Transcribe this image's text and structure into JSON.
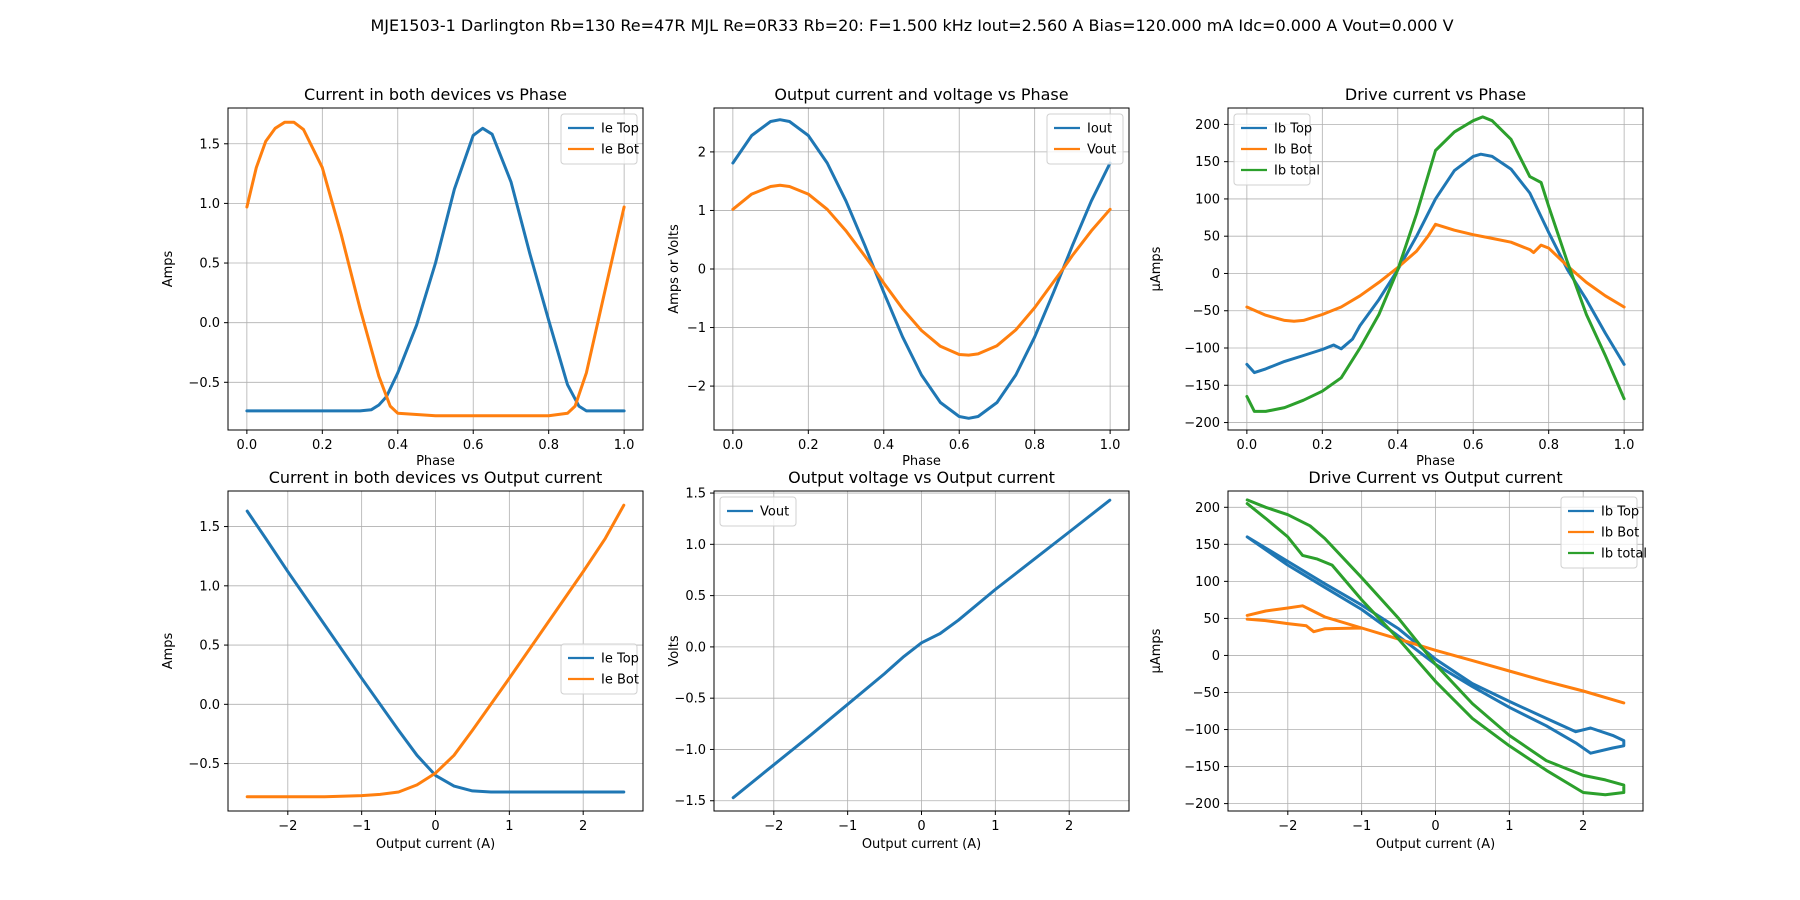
{
  "suptitle": "MJE1503-1 Darlington Rb=130 Re=47R MJL Re=0R33 Rb=20: F=1.500 kHz Iout=2.560 A Bias=120.000 mA Idc=0.000 A Vout=0.000 V",
  "colors": {
    "blue": "#1f77b4",
    "orange": "#ff7f0e",
    "green": "#2ca02c",
    "grid": "#b0b0b0"
  },
  "chart_data": [
    {
      "type": "line",
      "title": "Current in both devices vs Phase",
      "xlabel": "Phase",
      "ylabel": "Amps",
      "xlim": [
        -0.05,
        1.05
      ],
      "ylim": [
        -0.9,
        1.8
      ],
      "xticks": [
        0,
        0.2,
        0.4,
        0.6,
        0.8,
        1
      ],
      "xticklabels": [
        "0.0",
        "0.2",
        "0.4",
        "0.6",
        "0.8",
        "1.0"
      ],
      "yticks": [
        -0.5,
        0,
        0.5,
        1,
        1.5
      ],
      "yticklabels": [
        "−0.5",
        "0.0",
        "0.5",
        "1.0",
        "1.5"
      ],
      "grid": true,
      "legend": "top-right",
      "series": [
        {
          "name": "Ie Top",
          "color": "blue",
          "x": [
            0,
            0.05,
            0.1,
            0.15,
            0.2,
            0.25,
            0.3,
            0.33,
            0.35,
            0.37,
            0.4,
            0.45,
            0.5,
            0.55,
            0.6,
            0.625,
            0.65,
            0.7,
            0.75,
            0.8,
            0.85,
            0.88,
            0.9,
            0.95,
            1
          ],
          "y": [
            -0.74,
            -0.74,
            -0.74,
            -0.74,
            -0.74,
            -0.74,
            -0.74,
            -0.73,
            -0.69,
            -0.62,
            -0.42,
            -0.02,
            0.5,
            1.12,
            1.57,
            1.63,
            1.58,
            1.18,
            0.58,
            0.02,
            -0.52,
            -0.7,
            -0.74,
            -0.74,
            -0.74
          ]
        },
        {
          "name": "Ie Bot",
          "color": "orange",
          "x": [
            0,
            0.025,
            0.05,
            0.075,
            0.1,
            0.125,
            0.15,
            0.2,
            0.25,
            0.3,
            0.35,
            0.38,
            0.4,
            0.45,
            0.5,
            0.55,
            0.6,
            0.65,
            0.7,
            0.75,
            0.8,
            0.85,
            0.87,
            0.9,
            0.95,
            1
          ],
          "y": [
            0.97,
            1.3,
            1.52,
            1.63,
            1.68,
            1.68,
            1.62,
            1.3,
            0.74,
            0.12,
            -0.45,
            -0.7,
            -0.76,
            -0.77,
            -0.78,
            -0.78,
            -0.78,
            -0.78,
            -0.78,
            -0.78,
            -0.78,
            -0.76,
            -0.7,
            -0.42,
            0.28,
            0.97
          ]
        }
      ]
    },
    {
      "type": "line",
      "title": "Output current and voltage vs Phase",
      "xlabel": "Phase",
      "ylabel": "Amps or Volts",
      "xlim": [
        -0.05,
        1.05
      ],
      "ylim": [
        -2.75,
        2.75
      ],
      "xticks": [
        0,
        0.2,
        0.4,
        0.6,
        0.8,
        1
      ],
      "xticklabels": [
        "0.0",
        "0.2",
        "0.4",
        "0.6",
        "0.8",
        "1.0"
      ],
      "yticks": [
        -2,
        -1,
        0,
        1,
        2
      ],
      "yticklabels": [
        "−2",
        "−1",
        "0",
        "1",
        "2"
      ],
      "grid": true,
      "legend": "top-right",
      "series": [
        {
          "name": "Iout",
          "color": "blue",
          "x": [
            0,
            0.05,
            0.1,
            0.125,
            0.15,
            0.2,
            0.25,
            0.3,
            0.35,
            0.375,
            0.4,
            0.45,
            0.5,
            0.55,
            0.6,
            0.625,
            0.65,
            0.7,
            0.75,
            0.8,
            0.85,
            0.875,
            0.9,
            0.95,
            1
          ],
          "y": [
            1.81,
            2.28,
            2.52,
            2.55,
            2.52,
            2.28,
            1.81,
            1.16,
            0.4,
            0,
            -0.4,
            -1.16,
            -1.81,
            -2.28,
            -2.52,
            -2.55,
            -2.52,
            -2.28,
            -1.81,
            -1.16,
            -0.4,
            0,
            0.4,
            1.16,
            1.81
          ]
        },
        {
          "name": "Vout",
          "color": "orange",
          "x": [
            0,
            0.05,
            0.1,
            0.125,
            0.15,
            0.2,
            0.25,
            0.3,
            0.35,
            0.375,
            0.4,
            0.45,
            0.5,
            0.55,
            0.6,
            0.625,
            0.65,
            0.7,
            0.75,
            0.8,
            0.85,
            0.875,
            0.9,
            0.95,
            1
          ],
          "y": [
            1.02,
            1.28,
            1.41,
            1.43,
            1.41,
            1.28,
            1.02,
            0.65,
            0.22,
            0,
            -0.24,
            -0.68,
            -1.05,
            -1.32,
            -1.46,
            -1.47,
            -1.45,
            -1.31,
            -1.04,
            -0.66,
            -0.22,
            0,
            0.23,
            0.65,
            1.02
          ]
        }
      ]
    },
    {
      "type": "line",
      "title": "Drive current vs Phase",
      "xlabel": "Phase",
      "ylabel": "µAmps",
      "xlim": [
        -0.05,
        1.05
      ],
      "ylim": [
        -210,
        222
      ],
      "xticks": [
        0,
        0.2,
        0.4,
        0.6,
        0.8,
        1
      ],
      "xticklabels": [
        "0.0",
        "0.2",
        "0.4",
        "0.6",
        "0.8",
        "1.0"
      ],
      "yticks": [
        -200,
        -150,
        -100,
        -50,
        0,
        50,
        100,
        150,
        200
      ],
      "yticklabels": [
        "−200",
        "−150",
        "−100",
        "−50",
        "0",
        "50",
        "100",
        "150",
        "200"
      ],
      "grid": true,
      "legend": "top-left",
      "series": [
        {
          "name": "Ib Top",
          "color": "blue",
          "x": [
            0,
            0.02,
            0.05,
            0.1,
            0.15,
            0.2,
            0.23,
            0.25,
            0.28,
            0.3,
            0.35,
            0.4,
            0.45,
            0.5,
            0.55,
            0.6,
            0.62,
            0.65,
            0.7,
            0.75,
            0.8,
            0.85,
            0.9,
            0.95,
            1
          ],
          "y": [
            -122,
            -133,
            -128,
            -118,
            -110,
            -102,
            -96,
            -101,
            -88,
            -70,
            -35,
            5,
            50,
            100,
            138,
            157,
            160,
            157,
            140,
            108,
            55,
            5,
            -35,
            -80,
            -122
          ]
        },
        {
          "name": "Ib Bot",
          "color": "orange",
          "x": [
            0,
            0.05,
            0.1,
            0.125,
            0.15,
            0.2,
            0.25,
            0.3,
            0.35,
            0.4,
            0.45,
            0.48,
            0.5,
            0.55,
            0.6,
            0.65,
            0.7,
            0.75,
            0.76,
            0.78,
            0.8,
            0.85,
            0.9,
            0.95,
            1
          ],
          "y": [
            -45,
            -56,
            -63,
            -64,
            -63,
            -55,
            -45,
            -30,
            -12,
            8,
            30,
            50,
            66,
            58,
            52,
            47,
            42,
            32,
            28,
            38,
            34,
            10,
            -12,
            -30,
            -45
          ]
        },
        {
          "name": "Ib total",
          "color": "green",
          "x": [
            0,
            0.02,
            0.05,
            0.1,
            0.15,
            0.2,
            0.25,
            0.3,
            0.35,
            0.4,
            0.45,
            0.5,
            0.55,
            0.6,
            0.625,
            0.65,
            0.7,
            0.75,
            0.78,
            0.8,
            0.85,
            0.9,
            0.95,
            1
          ],
          "y": [
            -165,
            -185,
            -185,
            -180,
            -170,
            -158,
            -140,
            -100,
            -55,
            5,
            80,
            165,
            190,
            205,
            210,
            205,
            180,
            130,
            122,
            90,
            15,
            -55,
            -110,
            -168
          ]
        }
      ]
    },
    {
      "type": "line",
      "title": "Current in both devices vs Output current",
      "xlabel": "Output current (A)",
      "ylabel": "Amps",
      "xlim": [
        -2.81,
        2.81
      ],
      "ylim": [
        -0.9,
        1.8
      ],
      "xticks": [
        -2,
        -1,
        0,
        1,
        2
      ],
      "xticklabels": [
        "−2",
        "−1",
        "0",
        "1",
        "2"
      ],
      "yticks": [
        -0.5,
        0,
        0.5,
        1,
        1.5
      ],
      "yticklabels": [
        "−0.5",
        "0.0",
        "0.5",
        "1.0",
        "1.5"
      ],
      "grid": true,
      "legend": "center-right",
      "series": [
        {
          "name": "Ie Top",
          "color": "blue",
          "x": [
            -2.55,
            -2.3,
            -2,
            -1.5,
            -1,
            -0.5,
            -0.25,
            0,
            0.25,
            0.5,
            0.75,
            1,
            1.5,
            2,
            2.55
          ],
          "y": [
            1.63,
            1.4,
            1.12,
            0.67,
            0.22,
            -0.22,
            -0.43,
            -0.6,
            -0.69,
            -0.73,
            -0.74,
            -0.74,
            -0.74,
            -0.74,
            -0.74
          ]
        },
        {
          "name": "Ie Bot",
          "color": "orange",
          "x": [
            -2.55,
            -2,
            -1.5,
            -1,
            -0.75,
            -0.5,
            -0.25,
            0,
            0.25,
            0.5,
            1,
            1.5,
            2,
            2.3,
            2.55
          ],
          "y": [
            -0.78,
            -0.78,
            -0.78,
            -0.77,
            -0.76,
            -0.74,
            -0.68,
            -0.58,
            -0.43,
            -0.22,
            0.22,
            0.67,
            1.12,
            1.4,
            1.68
          ]
        }
      ]
    },
    {
      "type": "line",
      "title": "Output voltage vs Output current",
      "xlabel": "Output current (A)",
      "ylabel": "Volts",
      "xlim": [
        -2.81,
        2.81
      ],
      "ylim": [
        -1.6,
        1.52
      ],
      "xticks": [
        -2,
        -1,
        0,
        1,
        2
      ],
      "xticklabels": [
        "−2",
        "−1",
        "0",
        "1",
        "2"
      ],
      "yticks": [
        -1.5,
        -1,
        -0.5,
        0,
        0.5,
        1,
        1.5
      ],
      "yticklabels": [
        "−1.5",
        "−1.0",
        "−0.5",
        "0.0",
        "0.5",
        "1.0",
        "1.5"
      ],
      "grid": true,
      "legend": "top-left",
      "series": [
        {
          "name": "Vout",
          "color": "blue",
          "x": [
            -2.55,
            -2,
            -1.5,
            -1,
            -0.5,
            -0.25,
            0,
            0.25,
            0.5,
            1,
            1.5,
            2,
            2.55
          ],
          "y": [
            -1.47,
            -1.15,
            -0.86,
            -0.56,
            -0.26,
            -0.1,
            0.04,
            0.13,
            0.26,
            0.56,
            0.84,
            1.12,
            1.43
          ]
        }
      ]
    },
    {
      "type": "line",
      "title": "Drive Current vs Output current",
      "xlabel": "Output current (A)",
      "ylabel": "µAmps",
      "xlim": [
        -2.81,
        2.81
      ],
      "ylim": [
        -210,
        222
      ],
      "xticks": [
        -2,
        -1,
        0,
        1,
        2
      ],
      "xticklabels": [
        "−2",
        "−1",
        "0",
        "1",
        "2"
      ],
      "yticks": [
        -200,
        -150,
        -100,
        -50,
        0,
        50,
        100,
        150,
        200
      ],
      "yticklabels": [
        "−200",
        "−150",
        "−100",
        "−50",
        "0",
        "50",
        "100",
        "150",
        "200"
      ],
      "grid": true,
      "legend": "top-right",
      "series": [
        {
          "name": "Ib Top",
          "color": "blue",
          "x": [
            -2.55,
            -2,
            -1.5,
            -1,
            -0.5,
            0,
            0.5,
            1,
            1.5,
            1.9,
            2.1,
            2.4,
            2.55,
            2.55,
            2.4,
            2.1,
            1.9,
            1.5,
            1,
            0.5,
            0,
            -0.5,
            -1,
            -1.5,
            -2,
            -2.55
          ],
          "y": [
            160,
            127,
            97,
            68,
            36,
            -5,
            -38,
            -62,
            -85,
            -103,
            -98,
            -108,
            -115,
            -122,
            -125,
            -132,
            -118,
            -95,
            -70,
            -42,
            -12,
            26,
            62,
            92,
            122,
            160
          ]
        },
        {
          "name": "Ib Bot",
          "color": "orange",
          "x": [
            -2.55,
            -2.3,
            -2,
            -1.8,
            -1.7,
            -1.5,
            -1,
            -0.5,
            0,
            0.5,
            1,
            1.5,
            2,
            2.55,
            2,
            1.5,
            1,
            0.5,
            0,
            -0.5,
            -1,
            -1.5,
            -1.65,
            -1.75,
            -2,
            -2.3,
            -2.55
          ],
          "y": [
            54,
            60,
            64,
            67,
            62,
            52,
            37,
            22,
            7,
            -7,
            -21,
            -35,
            -48,
            -64,
            -48,
            -35,
            -21,
            -7,
            7,
            22,
            37,
            36,
            32,
            40,
            43,
            47,
            49
          ]
        },
        {
          "name": "Ib total",
          "color": "green",
          "x": [
            -2.55,
            -2.3,
            -2,
            -1.7,
            -1.5,
            -1,
            -0.5,
            0,
            0.5,
            1,
            1.5,
            2,
            2.3,
            2.55,
            2.55,
            2.3,
            2,
            1.5,
            1,
            0.5,
            0,
            -0.5,
            -1,
            -1.4,
            -1.6,
            -1.8,
            -2,
            -2.3,
            -2.55
          ],
          "y": [
            210,
            200,
            190,
            175,
            158,
            105,
            50,
            -12,
            -65,
            -108,
            -142,
            -162,
            -168,
            -175,
            -185,
            -188,
            -185,
            -155,
            -122,
            -85,
            -35,
            22,
            75,
            122,
            130,
            135,
            160,
            185,
            205
          ]
        }
      ]
    }
  ]
}
